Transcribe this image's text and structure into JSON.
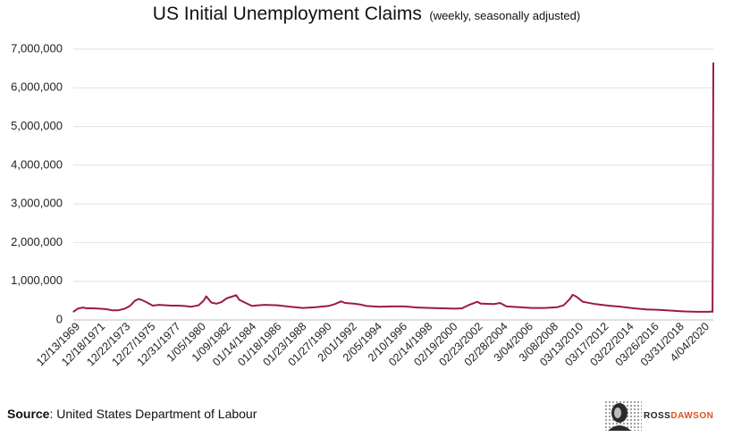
{
  "chart_data": {
    "type": "line",
    "title": "US Initial Unemployment Claims",
    "subtitle": "(weekly, seasonally adjusted)",
    "xlabel": "",
    "ylabel": "",
    "ylim": [
      0,
      7000000
    ],
    "y_ticks": [
      "0",
      "1,000,000",
      "2,000,000",
      "3,000,000",
      "4,000,000",
      "5,000,000",
      "6,000,000",
      "7,000,000"
    ],
    "x_ticks": [
      "12/13/1969",
      "12/18/1971",
      "12/22/1973",
      "12/27/1975",
      "12/31/1977",
      "1/05/1980",
      "1/09/1982",
      "01/14/1984",
      "01/18/1986",
      "01/23/1988",
      "01/27/1990",
      "2/01/1992",
      "2/05/1994",
      "2/10/1996",
      "02/14/1998",
      "02/19/2000",
      "02/23/2002",
      "02/28/2004",
      "3/04/2006",
      "3/08/2008",
      "03/13/2010",
      "03/17/2012",
      "03/22/2014",
      "03/26/2016",
      "03/31/2018",
      "4/04/2020"
    ],
    "grid": true,
    "legend": "none",
    "line_color": "#9b1b45",
    "series": [
      {
        "x": [
          1969.95,
          1970.3,
          1970.7,
          1971.0,
          1971.5,
          1972.0,
          1972.5,
          1973.0,
          1973.5,
          1974.0,
          1974.4,
          1974.8,
          1975.1,
          1975.3,
          1975.7,
          1976.2,
          1976.7,
          1977.2,
          1977.7,
          1978.2,
          1978.7,
          1979.2,
          1979.8,
          1980.2,
          1980.4,
          1980.8,
          1981.2,
          1981.6,
          1982.0,
          1982.4,
          1982.75,
          1983.0,
          1983.5,
          1984.0,
          1984.5,
          1985.0,
          1986.0,
          1987.0,
          1988.0,
          1989.0,
          1990.0,
          1990.5,
          1991.0,
          1991.3,
          1992.0,
          1992.5,
          1993.0,
          1994.0,
          1995.0,
          1996.0,
          1997.0,
          1998.0,
          1999.0,
          2000.0,
          2000.5,
          2001.0,
          2001.7,
          2002.0,
          2003.0,
          2003.5,
          2004.0,
          2005.0,
          2006.0,
          2007.0,
          2008.0,
          2008.5,
          2009.0,
          2009.2,
          2009.5,
          2010.0,
          2011.0,
          2012.0,
          2013.0,
          2014.0,
          2015.0,
          2016.0,
          2017.0,
          2018.0,
          2019.0,
          2019.5,
          2020.0,
          2020.15,
          2020.2,
          2020.23,
          2020.26
        ],
        "values": [
          210000,
          290000,
          320000,
          300000,
          300000,
          290000,
          280000,
          250000,
          250000,
          290000,
          360000,
          500000,
          540000,
          520000,
          460000,
          370000,
          390000,
          380000,
          370000,
          370000,
          360000,
          340000,
          380000,
          500000,
          610000,
          450000,
          420000,
          460000,
          560000,
          600000,
          640000,
          520000,
          440000,
          360000,
          380000,
          390000,
          380000,
          340000,
          310000,
          330000,
          360000,
          410000,
          480000,
          440000,
          420000,
          400000,
          360000,
          340000,
          350000,
          350000,
          320000,
          310000,
          300000,
          290000,
          300000,
          380000,
          470000,
          420000,
          410000,
          440000,
          350000,
          330000,
          310000,
          310000,
          330000,
          380000,
          550000,
          650000,
          600000,
          470000,
          410000,
          370000,
          340000,
          300000,
          270000,
          260000,
          240000,
          220000,
          210000,
          210000,
          210000,
          220000,
          210000,
          3300000,
          6650000
        ]
      }
    ]
  },
  "footer": {
    "source_label": "Source",
    "source_text": ": United States Department of Labour"
  },
  "logo": {
    "text_part1": "ROSS",
    "text_part2": "DAWSON"
  }
}
